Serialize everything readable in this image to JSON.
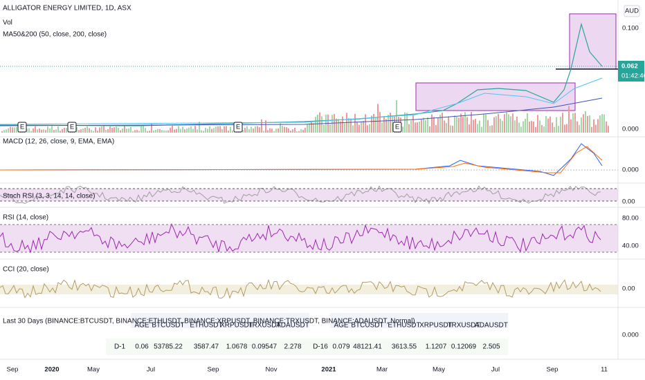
{
  "header": {
    "title": "ALLIGATOR ENERGY LIMITED, 1D, ASX",
    "volume": "Vol",
    "ma": "MA50&200 (50, close, 200, close)",
    "currency": "AUD"
  },
  "price_axis": {
    "top": "0.100",
    "last": "0.062",
    "countdown": "01:42:46",
    "bottom": "0.000"
  },
  "earnings": [
    "E",
    "E",
    "E",
    "E"
  ],
  "panes": [
    {
      "label": "MACD (12, 26, close, 9, EMA, EMA)",
      "axis": [
        "0.000"
      ]
    },
    {
      "label": "Stoch RSI (3, 3, 14, 14, close)",
      "axis": [
        "0.00"
      ]
    },
    {
      "label": "RSI (14, close)",
      "axis": [
        "80.00",
        "40.00"
      ]
    },
    {
      "label": "CCI (20, close)",
      "axis": [
        "0.00"
      ]
    },
    {
      "label": "Last 30 Days (BINANCE:BTCUSDT, BINANCE:ETHUSDT, BINANCE:XRPUSDT, BINANCE:TRXUSDT, BINANCE:ADAUSDT, Normal)",
      "axis": [
        "0.000"
      ]
    }
  ],
  "tables": [
    {
      "headers": [
        "AGE",
        "BTCUSDT",
        "ETHUSDT",
        "XRPUSDT",
        "TRXUSDT",
        "ADAUSDT"
      ],
      "row": [
        "D-1",
        "0.06",
        "53785.22",
        "3587.47",
        "1.0678",
        "0.09547",
        "2.278"
      ]
    },
    {
      "headers": [
        "AGE",
        "BTCUSDT",
        "ETHUSDT",
        "XRPUSDT",
        "TRXUSDT",
        "ADAUSDT"
      ],
      "row": [
        "D-16",
        "0.079",
        "48121.41",
        "3613.55",
        "1.1207",
        "0.12069",
        "2.505"
      ]
    }
  ],
  "time_axis": [
    "Sep",
    "2020",
    "May",
    "Jul",
    "Sep",
    "Nov",
    "2021",
    "Mar",
    "May",
    "Jul",
    "Sep",
    "11"
  ]
}
